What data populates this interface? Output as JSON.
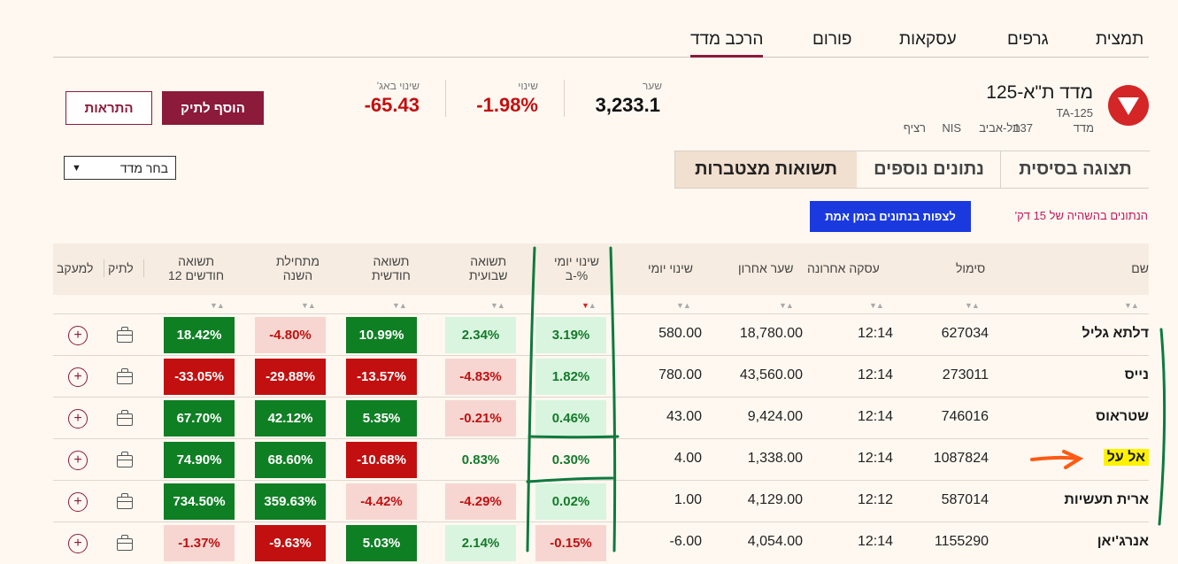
{
  "nav": {
    "tabs": [
      {
        "label": "תמצית"
      },
      {
        "label": "גרפים"
      },
      {
        "label": "עסקאות"
      },
      {
        "label": "פורום"
      },
      {
        "label": "הרכב מדד",
        "active": true
      }
    ]
  },
  "index": {
    "title": "מדד ת\"א-125",
    "code": "TA-125",
    "type": "מדד",
    "number": "137",
    "exchange": "תל-אביב",
    "currency": "NIS",
    "trading": "רציף",
    "direction_icon": "down-triangle-icon",
    "price_label": "שער",
    "price": "3,233.1",
    "change_label": "שינוי",
    "change": "-1.98%",
    "change_abs_label": "שינוי באג'",
    "change_abs": "-65.43"
  },
  "buttons": {
    "add_portfolio": "הוסף לתיק",
    "alerts": "התראות",
    "realtime": "לצפות בנתונים בזמן אמת"
  },
  "subtabs": [
    {
      "label": "תצוגה בסיסית"
    },
    {
      "label": "נתונים נוספים"
    },
    {
      "label": "תשואות מצטברות",
      "active": true
    }
  ],
  "select": {
    "value": "בחר מדד"
  },
  "delay_note": "הנתונים בהשהיה של 15 דק'",
  "table": {
    "headers": {
      "name": "שם",
      "symbol": "סימול",
      "last_trade": "עסקה אחרונה",
      "last_price": "שער אחרון",
      "daily_change": "שינוי יומי",
      "daily_pct_1": "שינוי יומי",
      "daily_pct_2": "ב-%",
      "weekly_1": "תשואה",
      "weekly_2": "שבועית",
      "monthly_1": "תשואה",
      "monthly_2": "חודשית",
      "ytd_1": "מתחילת",
      "ytd_2": "השנה",
      "y12_1": "תשואה",
      "y12_2": "12 חודשים",
      "portfolio": "לתיק",
      "watch": "למעקב"
    },
    "rows": [
      {
        "name": "דלתא גליל",
        "symbol": "627034",
        "time": "12:14",
        "price": "18,780.00",
        "change": "580.00",
        "pct": "3.19%",
        "week": "2.34%",
        "month": "10.99%",
        "ytd": "-4.80%",
        "y12": "18.42%"
      },
      {
        "name": "נייס",
        "symbol": "273011",
        "time": "12:14",
        "price": "43,560.00",
        "change": "780.00",
        "pct": "1.82%",
        "week": "-4.83%",
        "month": "-13.57%",
        "ytd": "-29.88%",
        "y12": "-33.05%"
      },
      {
        "name": "שטראוס",
        "symbol": "746016",
        "time": "12:14",
        "price": "9,424.00",
        "change": "43.00",
        "pct": "0.46%",
        "week": "-0.21%",
        "month": "5.35%",
        "ytd": "42.12%",
        "y12": "67.70%"
      },
      {
        "name": "אל על",
        "symbol": "1087824",
        "time": "12:14",
        "price": "1,338.00",
        "change": "4.00",
        "pct": "0.30%",
        "week": "0.83%",
        "month": "-10.68%",
        "ytd": "68.60%",
        "y12": "74.90%"
      },
      {
        "name": "ארית תעשיות",
        "symbol": "587014",
        "time": "12:12",
        "price": "4,129.00",
        "change": "1.00",
        "pct": "0.02%",
        "week": "-4.29%",
        "month": "-4.42%",
        "ytd": "359.63%",
        "y12": "734.50%"
      },
      {
        "name": "אנרג'יאן",
        "symbol": "1155290",
        "time": "12:14",
        "price": "4,054.00",
        "change": "-6.00",
        "pct": "-0.15%",
        "week": "2.14%",
        "month": "5.03%",
        "ytd": "-9.63%",
        "y12": "-1.37%"
      }
    ]
  },
  "colors": {
    "brand": "#8c1a3a",
    "positive": "#0f7f24",
    "negative": "#c20f0f",
    "highlight": "#fff200",
    "annotation_green": "#0d7a3e",
    "annotation_orange": "#ff5a14"
  }
}
